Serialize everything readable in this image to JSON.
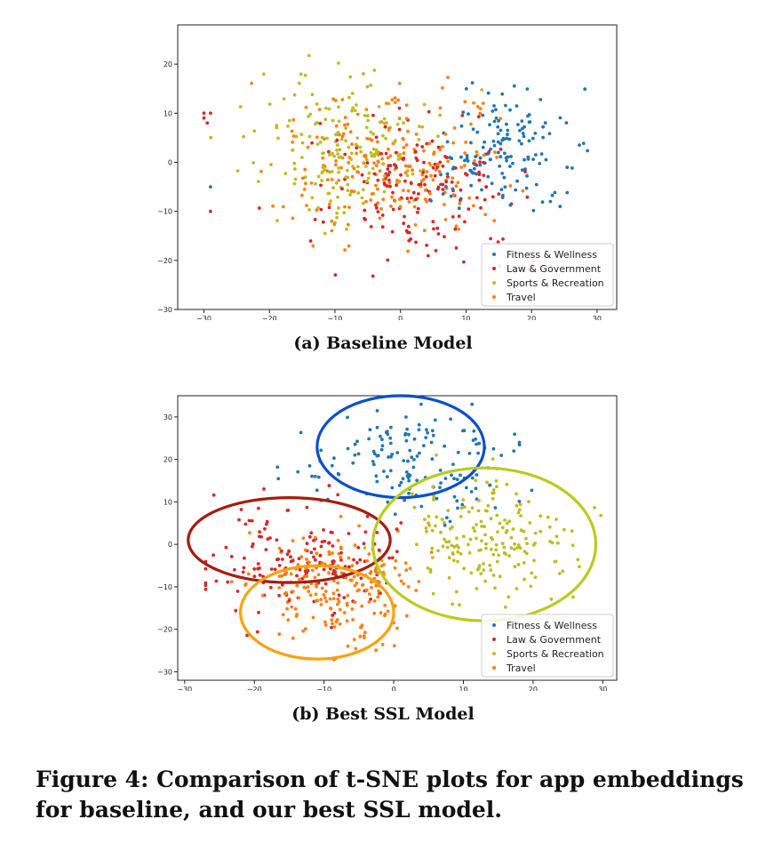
{
  "chart_data": [
    {
      "type": "scatter",
      "title": "",
      "xlabel": "",
      "ylabel": "",
      "xlim": [
        -34,
        33
      ],
      "ylim": [
        -30,
        28
      ],
      "xticks": [
        -30,
        -20,
        -10,
        0,
        10,
        20,
        30
      ],
      "yticks": [
        -30,
        -20,
        -10,
        0,
        10,
        20
      ],
      "xtick_labels": [
        "−30",
        "−20",
        "−10",
        "0",
        "10",
        "20",
        "30"
      ],
      "ytick_labels": [
        "−30",
        "−20",
        "−10",
        "0",
        "10",
        "20"
      ],
      "legend": "bottom-right",
      "series": [
        {
          "name": "Fitness & Wellness",
          "color": "#1f77b4",
          "center": [
            16,
            3
          ],
          "spread": [
            7,
            8
          ],
          "count": 150,
          "seed": 11
        },
        {
          "name": "Law & Government",
          "color": "#d62728",
          "center": [
            3,
            -6
          ],
          "spread": [
            9,
            9
          ],
          "count": 170,
          "seed": 23
        },
        {
          "name": "Sports & Recreation",
          "color": "#bcbd22",
          "center": [
            -8,
            2
          ],
          "spread": [
            9,
            10
          ],
          "count": 190,
          "seed": 37
        },
        {
          "name": "Travel",
          "color": "#ff7f0e",
          "center": [
            -2,
            0
          ],
          "spread": [
            11,
            10
          ],
          "count": 210,
          "seed": 41
        }
      ],
      "extra_points": [
        {
          "series": 1,
          "x": -30,
          "y": 10
        },
        {
          "series": 1,
          "x": -30,
          "y": 9
        },
        {
          "series": 1,
          "x": -29,
          "y": 10
        },
        {
          "series": 1,
          "x": -29.5,
          "y": 8
        },
        {
          "series": 1,
          "x": -29,
          "y": -10
        },
        {
          "series": 0,
          "x": -29,
          "y": -5
        }
      ]
    },
    {
      "type": "scatter",
      "title": "",
      "xlabel": "",
      "ylabel": "",
      "xlim": [
        -31,
        32
      ],
      "ylim": [
        -32,
        35
      ],
      "xticks": [
        -30,
        -20,
        -10,
        0,
        10,
        20,
        30
      ],
      "yticks": [
        -30,
        -20,
        -10,
        0,
        10,
        20,
        30
      ],
      "xtick_labels": [
        "−30",
        "−20",
        "−10",
        "0",
        "10",
        "20",
        "30"
      ],
      "ytick_labels": [
        "−30",
        "−20",
        "−10",
        "0",
        "10",
        "20",
        "30"
      ],
      "legend": "bottom-right",
      "series": [
        {
          "name": "Fitness & Wellness",
          "color": "#1f77b4",
          "center": [
            3,
            20
          ],
          "spread": [
            9,
            8
          ],
          "count": 150,
          "seed": 5
        },
        {
          "name": "Law & Government",
          "color": "#d62728",
          "center": [
            -14,
            -4
          ],
          "spread": [
            10,
            8
          ],
          "count": 160,
          "seed": 17
        },
        {
          "name": "Sports & Recreation",
          "color": "#bcbd22",
          "center": [
            14,
            1
          ],
          "spread": [
            8,
            9
          ],
          "count": 190,
          "seed": 29
        },
        {
          "name": "Travel",
          "color": "#ff7f0e",
          "center": [
            -8,
            -10
          ],
          "spread": [
            8,
            9
          ],
          "count": 210,
          "seed": 53
        }
      ],
      "annotations": [
        {
          "shape": "ellipse",
          "color": "#0a4fcc",
          "cx": 1,
          "cy": 23,
          "rx": 12,
          "ry": 12
        },
        {
          "shape": "ellipse",
          "color": "#a61c0c",
          "cx": -15,
          "cy": 1,
          "rx": 14.5,
          "ry": 10
        },
        {
          "shape": "ellipse",
          "color": "#ffa10a",
          "cx": -11,
          "cy": -16,
          "rx": 11,
          "ry": 11
        },
        {
          "shape": "ellipse",
          "color": "#b8cc1f",
          "cx": 13,
          "cy": 0,
          "rx": 16,
          "ry": 18
        }
      ]
    }
  ],
  "captions": {
    "a": "(a) Baseline Model",
    "b": "(b) Best SSL Model",
    "figure": "Figure 4: Comparison of t-SNE plots for app embeddings for baseline, and our best SSL model."
  }
}
